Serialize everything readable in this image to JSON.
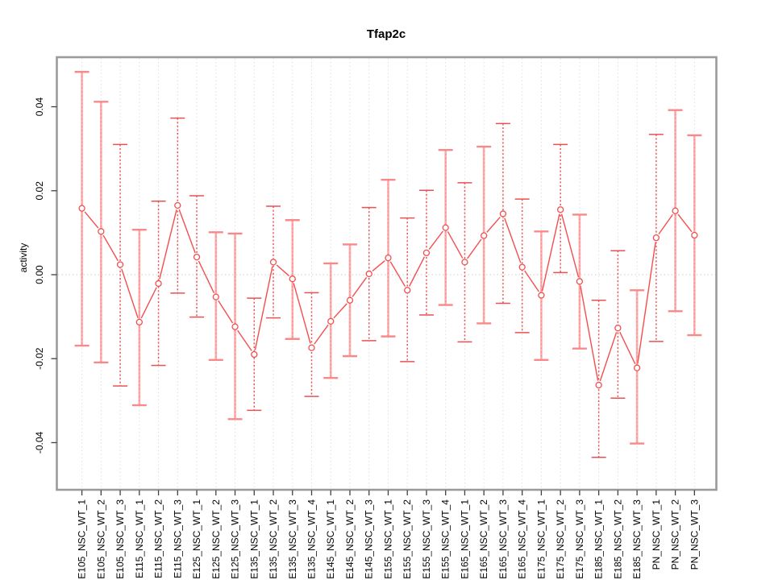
{
  "figure": {
    "title": "Tfap2c",
    "background": "#ffffff"
  },
  "colors": {
    "plot_border": "#9b9b9b",
    "tick_mark": "#404040",
    "grid_line": "#dfdfdf",
    "zero_line": "#cdcdcd",
    "series_line": "#f44e4e",
    "marker_stroke": "#f44e4e",
    "marker_fill": "#ffffff",
    "errorbar_solid": "#ffabab",
    "errorbar_solid_cap": "#f98888",
    "errorbar_dotted": "#ea5252",
    "label_text": "#000000"
  },
  "chart_data": {
    "type": "scatter",
    "subtype": "points-with-error-bars-connected-by-line",
    "title": "Tfap2c",
    "xlabel": "",
    "ylabel": "activity",
    "ylim": [
      -0.047,
      0.049
    ],
    "yticks": [
      0.04,
      0.02,
      0.0,
      -0.02,
      -0.04
    ],
    "ytick_labels": [
      "0.04",
      "0.02",
      "0.00",
      "-0.02",
      "-0.04"
    ],
    "grid": "dotted vertical gridline at each category; dotted horizontal line at y=0",
    "legend": "none",
    "marker": "open-circle",
    "connected": true,
    "error_bars": true,
    "points": [
      {
        "label": "E105_NSC_WT_1",
        "y": 0.0158,
        "y_hi": 0.0483,
        "y_lo": -0.0169,
        "bar_style": "solid"
      },
      {
        "label": "E105_NSC_WT_2",
        "y": 0.0103,
        "y_hi": 0.0412,
        "y_lo": -0.0209,
        "bar_style": "solid"
      },
      {
        "label": "E105_NSC_WT_3",
        "y": 0.0024,
        "y_hi": 0.031,
        "y_lo": -0.0265,
        "bar_style": "dotted"
      },
      {
        "label": "E115_NSC_WT_1",
        "y": -0.0113,
        "y_hi": 0.0107,
        "y_lo": -0.0311,
        "bar_style": "solid"
      },
      {
        "label": "E115_NSC_WT_2",
        "y": -0.0021,
        "y_hi": 0.0175,
        "y_lo": -0.0216,
        "bar_style": "dotted"
      },
      {
        "label": "E115_NSC_WT_3",
        "y": 0.0165,
        "y_hi": 0.0373,
        "y_lo": -0.0044,
        "bar_style": "dotted"
      },
      {
        "label": "E125_NSC_WT_1",
        "y": 0.0042,
        "y_hi": 0.0188,
        "y_lo": -0.0101,
        "bar_style": "dotted"
      },
      {
        "label": "E125_NSC_WT_2",
        "y": -0.0053,
        "y_hi": 0.0101,
        "y_lo": -0.0203,
        "bar_style": "solid"
      },
      {
        "label": "E125_NSC_WT_3",
        "y": -0.0124,
        "y_hi": 0.0098,
        "y_lo": -0.0344,
        "bar_style": "solid"
      },
      {
        "label": "E135_NSC_WT_1",
        "y": -0.019,
        "y_hi": -0.0056,
        "y_lo": -0.0323,
        "bar_style": "dotted"
      },
      {
        "label": "E135_NSC_WT_2",
        "y": 0.003,
        "y_hi": 0.0163,
        "y_lo": -0.0103,
        "bar_style": "dotted"
      },
      {
        "label": "E135_NSC_WT_3",
        "y": -0.001,
        "y_hi": 0.013,
        "y_lo": -0.0153,
        "bar_style": "solid"
      },
      {
        "label": "E135_NSC_WT_4",
        "y": -0.0174,
        "y_hi": -0.0043,
        "y_lo": -0.029,
        "bar_style": "dotted"
      },
      {
        "label": "E145_NSC_WT_1",
        "y": -0.0111,
        "y_hi": 0.0027,
        "y_lo": -0.0246,
        "bar_style": "solid"
      },
      {
        "label": "E145_NSC_WT_2",
        "y": -0.0061,
        "y_hi": 0.0072,
        "y_lo": -0.0194,
        "bar_style": "solid"
      },
      {
        "label": "E145_NSC_WT_3",
        "y": 0.0002,
        "y_hi": 0.016,
        "y_lo": -0.0157,
        "bar_style": "dotted"
      },
      {
        "label": "E155_NSC_WT_1",
        "y": 0.004,
        "y_hi": 0.0226,
        "y_lo": -0.0147,
        "bar_style": "solid"
      },
      {
        "label": "E155_NSC_WT_2",
        "y": -0.0037,
        "y_hi": 0.0135,
        "y_lo": -0.0207,
        "bar_style": "dotted"
      },
      {
        "label": "E155_NSC_WT_3",
        "y": 0.0052,
        "y_hi": 0.0201,
        "y_lo": -0.0096,
        "bar_style": "dotted"
      },
      {
        "label": "E155_NSC_WT_4",
        "y": 0.0112,
        "y_hi": 0.0297,
        "y_lo": -0.0072,
        "bar_style": "solid"
      },
      {
        "label": "E165_NSC_WT_1",
        "y": 0.003,
        "y_hi": 0.0219,
        "y_lo": -0.016,
        "bar_style": "dotted"
      },
      {
        "label": "E165_NSC_WT_2",
        "y": 0.0093,
        "y_hi": 0.0305,
        "y_lo": -0.0116,
        "bar_style": "solid"
      },
      {
        "label": "E165_NSC_WT_3",
        "y": 0.0145,
        "y_hi": 0.036,
        "y_lo": -0.0068,
        "bar_style": "dotted"
      },
      {
        "label": "E165_NSC_WT_4",
        "y": 0.0018,
        "y_hi": 0.018,
        "y_lo": -0.0138,
        "bar_style": "dotted"
      },
      {
        "label": "E175_NSC_WT_1",
        "y": -0.0049,
        "y_hi": 0.0103,
        "y_lo": -0.0203,
        "bar_style": "solid"
      },
      {
        "label": "E175_NSC_WT_2",
        "y": 0.0155,
        "y_hi": 0.031,
        "y_lo": 0.0005,
        "bar_style": "dotted"
      },
      {
        "label": "E175_NSC_WT_3",
        "y": -0.0016,
        "y_hi": 0.0143,
        "y_lo": -0.0176,
        "bar_style": "solid"
      },
      {
        "label": "E185_NSC_WT_1",
        "y": -0.0263,
        "y_hi": -0.0061,
        "y_lo": -0.0435,
        "bar_style": "dotted"
      },
      {
        "label": "E185_NSC_WT_2",
        "y": -0.0127,
        "y_hi": 0.0057,
        "y_lo": -0.0294,
        "bar_style": "dotted"
      },
      {
        "label": "E185_NSC_WT_3",
        "y": -0.0222,
        "y_hi": -0.0037,
        "y_lo": -0.0402,
        "bar_style": "solid"
      },
      {
        "label": "PN_NSC_WT_1",
        "y": 0.0088,
        "y_hi": 0.0334,
        "y_lo": -0.0159,
        "bar_style": "dotted"
      },
      {
        "label": "PN_NSC_WT_2",
        "y": 0.0152,
        "y_hi": 0.0392,
        "y_lo": -0.0087,
        "bar_style": "solid"
      },
      {
        "label": "PN_NSC_WT_3",
        "y": 0.0094,
        "y_hi": 0.0332,
        "y_lo": -0.0144,
        "bar_style": "solid"
      }
    ]
  }
}
